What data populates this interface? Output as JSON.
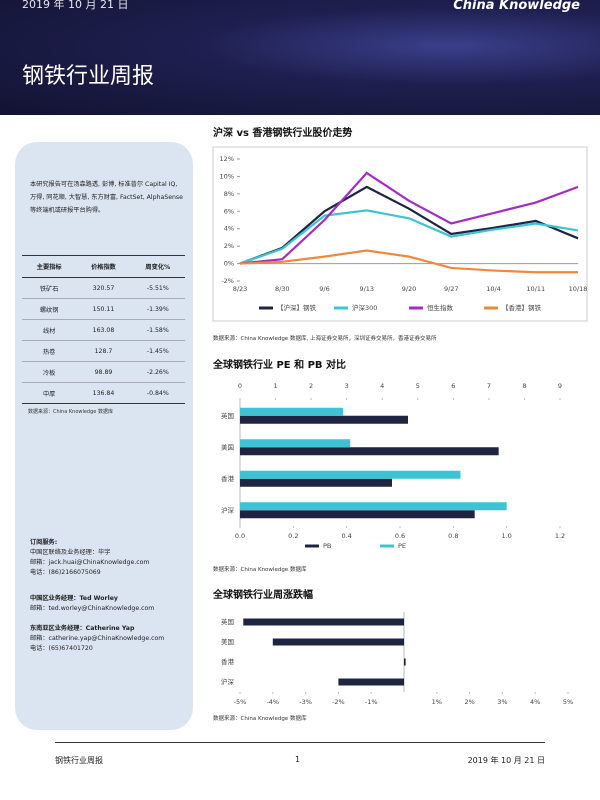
{
  "header": {
    "date": "2019 年 10 月 21 日",
    "brand": "China Knowledge",
    "title": "钢铁行业周报"
  },
  "sidebar": {
    "intro": "本研究报告可在汤森路透, 彭博, 标准普尔 Capital IQ, 万得, 同花顺, 大智慧, 东方财富, FactSet, AlphaSense 等终端机或研报平台购得。",
    "table": {
      "headers": [
        "主要指标",
        "价格指数",
        "周变化%"
      ],
      "rows": [
        [
          "铁矿石",
          "320.57",
          "-5.51%"
        ],
        [
          "螺纹钢",
          "150.11",
          "-1.39%"
        ],
        [
          "线材",
          "163.08",
          "-1.58%"
        ],
        [
          "热卷",
          "128.7",
          "-1.45%"
        ],
        [
          "冷板",
          "98.89",
          "-2.26%"
        ],
        [
          "中厚",
          "136.84",
          "-0.84%"
        ]
      ],
      "source": "数据来源：China Knowledge 数据库"
    },
    "contacts": [
      {
        "heading": "订阅服务:",
        "lines": [
          "中国区联络及业务经理：毕宇",
          "邮箱：jack.huai@ChinaKnowledge.com",
          "电话：(86)2166075069"
        ]
      },
      {
        "heading": "中国区业务经理：Ted Worley",
        "lines": [
          "邮箱：ted.worley@ChinaKnowledge.com"
        ]
      },
      {
        "heading": "东南亚区业务经理：Catherine Yap",
        "lines": [
          "邮箱：catherine.yap@ChinaKnowledge.com",
          "电话：(65)67401720"
        ]
      }
    ]
  },
  "chart_data": [
    {
      "type": "line",
      "title": "沪深 vs 香港钢铁行业股价走势",
      "source": "数据来源：China Knowledge 数据库, 上海证券交易所，深圳证券交易所，香港证券交易所",
      "categories": [
        "8/23",
        "8/30",
        "9/6",
        "9/13",
        "9/20",
        "9/27",
        "10/4",
        "10/11",
        "10/18"
      ],
      "ylim": [
        -2,
        12
      ],
      "yticks": [
        {
          "value": -2,
          "label": "-2%"
        },
        {
          "value": 0,
          "label": "0%"
        },
        {
          "value": 2,
          "label": "2%"
        },
        {
          "value": 4,
          "label": "4%"
        },
        {
          "value": 6,
          "label": "6%"
        },
        {
          "value": 8,
          "label": "8%"
        },
        {
          "value": 10,
          "label": "10%"
        },
        {
          "value": 12,
          "label": "12%"
        }
      ],
      "legend": "bottom",
      "series": [
        {
          "name": "【沪深】钢铁",
          "color": "#1f2440",
          "values": [
            0,
            1.8,
            6,
            8.8,
            6.3,
            3.4,
            4.1,
            4.9,
            2.9
          ]
        },
        {
          "name": "沪深300",
          "color": "#3cc4d4",
          "values": [
            0,
            1.7,
            5.5,
            6.1,
            5.2,
            3.1,
            3.9,
            4.6,
            3.8
          ]
        },
        {
          "name": "恒生指数",
          "color": "#a32cc4",
          "values": [
            0,
            0.5,
            5,
            10.4,
            7.2,
            4.6,
            5.8,
            7,
            8.8
          ]
        },
        {
          "name": "【香港】钢铁",
          "color": "#f0883a",
          "values": [
            0,
            0.2,
            0.8,
            1.5,
            0.8,
            -0.5,
            -0.8,
            -1,
            -1
          ]
        }
      ]
    },
    {
      "type": "bar",
      "orientation": "horizontal",
      "title": "全球钢铁行业 PE 和 PB 对比",
      "source": "数据来源：China Knowledge 数据库",
      "categories": [
        "英国",
        "美国",
        "香港",
        "沪深"
      ],
      "xlim": [
        0,
        1.2
      ],
      "xticks": [
        {
          "value": 0,
          "label": "0.0"
        },
        0.2,
        0.4,
        0.6,
        0.8,
        {
          "value": 1,
          "label": "1.0"
        },
        1.2
      ],
      "x2lim": [
        0,
        9
      ],
      "x2ticks": [
        0,
        1,
        2,
        3,
        4,
        5,
        6,
        7,
        8,
        9
      ],
      "legend": "bottom",
      "series": [
        {
          "name": "PB",
          "color": "#1f2440",
          "values": [
            0.63,
            0.97,
            0.57,
            0.88
          ]
        },
        {
          "name": "PE",
          "color": "#3cc4d4",
          "axis": "x2",
          "values": [
            2.9,
            3.1,
            6.2,
            7.5
          ]
        }
      ]
    },
    {
      "type": "bar",
      "orientation": "horizontal",
      "title": "全球钢铁行业周涨跌幅",
      "source": "数据来源：China Knowledge 数据库",
      "categories": [
        "英国",
        "美国",
        "香港",
        "沪深"
      ],
      "xlim": [
        -5,
        5
      ],
      "xticks": [
        {
          "value": -5,
          "label": "-5%"
        },
        {
          "value": -4,
          "label": "-4%"
        },
        {
          "value": -3,
          "label": "-3%"
        },
        {
          "value": -2,
          "label": "-2%"
        },
        {
          "value": -1,
          "label": "-1%"
        },
        {
          "value": 1,
          "label": "1%"
        },
        {
          "value": 2,
          "label": "2%"
        },
        {
          "value": 3,
          "label": "3%"
        },
        {
          "value": 4,
          "label": "4%"
        },
        {
          "value": 5,
          "label": "5%"
        }
      ],
      "color": "#1f2440",
      "values": [
        -4.9,
        -4.0,
        0.05,
        -2.0
      ]
    }
  ],
  "footer": {
    "left": "钢铁行业周报",
    "page": "1",
    "right": "2019 年 10 月 21 日"
  }
}
